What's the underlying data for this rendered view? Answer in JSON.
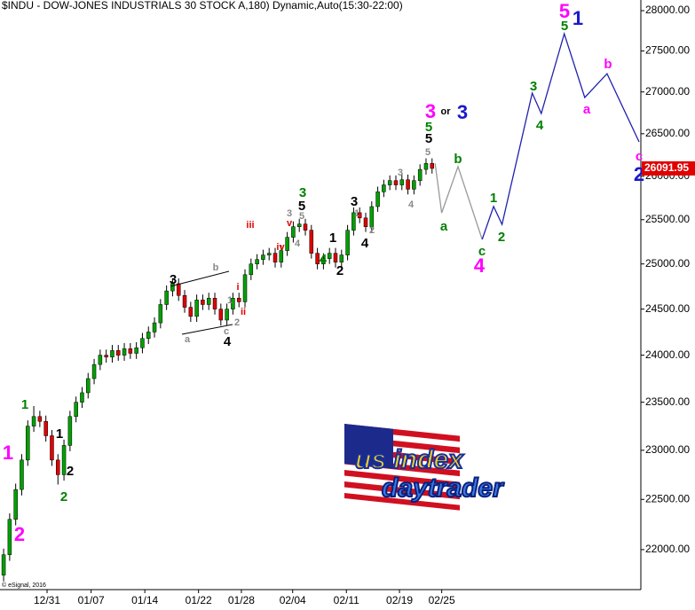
{
  "chart_data": {
    "type": "candlestick",
    "title": "$INDU - DOW-JONES INDUSTRIALS 30 STOCK A,180) Dynamic,Auto(15:30-22:00)",
    "copyright": "© eSignal, 2016",
    "logo": {
      "line1": "us index",
      "line2": "daytrader"
    },
    "log_scale": true,
    "up_color": "#00a000",
    "down_color": "#e00000",
    "last_price_color": "#e00000",
    "ylim": [
      21610,
      28134
    ],
    "yticks": [
      {
        "value": 22000,
        "label": "22000.00"
      },
      {
        "value": 22500,
        "label": "22500.00"
      },
      {
        "value": 23000,
        "label": "23000.00"
      },
      {
        "value": 23500,
        "label": "23500.00"
      },
      {
        "value": 24000,
        "label": "24000.00"
      },
      {
        "value": 24500,
        "label": "24500.00"
      },
      {
        "value": 25000,
        "label": "25000.00"
      },
      {
        "value": 25500,
        "label": "25500.00"
      },
      {
        "value": 26000,
        "label": "26000.00"
      },
      {
        "value": 26500,
        "label": "26500.00"
      },
      {
        "value": 27000,
        "label": "27000.00"
      },
      {
        "value": 27500,
        "label": "27500.00"
      },
      {
        "value": 28000,
        "label": "28000.00"
      }
    ],
    "xlim": [
      -0.6,
      105.6
    ],
    "xticks": [
      {
        "value": 7.2,
        "label": "12/31"
      },
      {
        "value": 14.5,
        "label": "01/07"
      },
      {
        "value": 23.4,
        "label": "01/14"
      },
      {
        "value": 32.3,
        "label": "01/22"
      },
      {
        "value": 39.4,
        "label": "01/28"
      },
      {
        "value": 47.9,
        "label": "02/04"
      },
      {
        "value": 56.8,
        "label": "02/11"
      },
      {
        "value": 65.6,
        "label": "02/19"
      },
      {
        "value": 72.6,
        "label": "02/25"
      }
    ],
    "open": [
      21750,
      21950,
      22300,
      22600,
      22900,
      23250,
      23350,
      23300,
      23150,
      22900,
      22750,
      23050,
      23350,
      23500,
      23600,
      23750,
      23900,
      24000,
      23980,
      24050,
      24000,
      24070,
      24020,
      24080,
      24180,
      24250,
      24350,
      24550,
      24700,
      24780,
      24650,
      24520,
      24420,
      24600,
      24550,
      24620,
      24500,
      24380,
      24500,
      24620,
      24580,
      24880,
      25000,
      25050,
      25100,
      25120,
      25020,
      25150,
      25300,
      25420,
      25450,
      25380,
      25120,
      25000,
      25060,
      25120,
      25020,
      25100,
      25380,
      25580,
      25520,
      25420,
      25650,
      25820,
      25900,
      25950,
      25900,
      25960,
      25850,
      25950,
      26080,
      26150
    ],
    "high": [
      22010,
      22360,
      22660,
      22960,
      23310,
      23460,
      23410,
      23360,
      23210,
      22960,
      23110,
      23410,
      23560,
      23660,
      23810,
      23960,
      24060,
      24060,
      24110,
      24110,
      24130,
      24130,
      24140,
      24240,
      24310,
      24410,
      24610,
      24760,
      24840,
      24840,
      24710,
      24580,
      24660,
      24660,
      24680,
      24680,
      24560,
      24560,
      24680,
      24680,
      24940,
      25060,
      25110,
      25160,
      25180,
      25180,
      25210,
      25360,
      25480,
      25510,
      25510,
      25440,
      25180,
      25120,
      25180,
      25180,
      25160,
      25440,
      25640,
      25640,
      25580,
      25710,
      25880,
      25960,
      26010,
      26010,
      26020,
      26020,
      26010,
      26140,
      26210,
      26210
    ],
    "low": [
      21690,
      21890,
      22240,
      22540,
      22840,
      23190,
      23240,
      23090,
      22840,
      22650,
      22690,
      22990,
      23290,
      23440,
      23540,
      23690,
      23840,
      23920,
      23920,
      23940,
      23940,
      23960,
      23960,
      24020,
      24120,
      24190,
      24290,
      24490,
      24640,
      24590,
      24460,
      24360,
      24360,
      24490,
      24490,
      24440,
      24320,
      24320,
      24440,
      24520,
      24520,
      24820,
      24940,
      24990,
      25040,
      24960,
      24960,
      25090,
      25240,
      25360,
      25320,
      25060,
      24940,
      24940,
      25000,
      24960,
      24960,
      25040,
      25320,
      25460,
      25360,
      25360,
      25590,
      25760,
      25840,
      25840,
      25840,
      25790,
      25790,
      25890,
      26020,
      26032
    ],
    "close": [
      21950,
      22300,
      22600,
      22900,
      23250,
      23350,
      23300,
      23150,
      22900,
      22750,
      23050,
      23350,
      23500,
      23600,
      23750,
      23900,
      24000,
      23980,
      24050,
      24000,
      24070,
      24020,
      24080,
      24180,
      24250,
      24350,
      24550,
      24700,
      24780,
      24650,
      24520,
      24420,
      24600,
      24550,
      24620,
      24500,
      24380,
      24500,
      24620,
      24580,
      24880,
      25000,
      25050,
      25100,
      25120,
      25020,
      25150,
      25300,
      25420,
      25450,
      25380,
      25120,
      25000,
      25060,
      25120,
      25020,
      25100,
      25380,
      25580,
      25520,
      25420,
      25650,
      25820,
      25900,
      25950,
      25900,
      25960,
      25850,
      25950,
      26080,
      26150,
      26091.95
    ],
    "projections": [
      {
        "color": "#999999",
        "x": [
          71.5,
          72.6,
          75.3,
          79.3
        ],
        "values": [
          26150,
          25578,
          26113,
          25276
        ]
      },
      {
        "color": "#2020b0",
        "x": [
          79.3,
          81.2,
          82.6,
          87.6,
          89.1,
          92.9,
          96.3,
          100,
          105.3
        ],
        "values": [
          25276,
          25651,
          25446,
          26986,
          26741,
          27712,
          26933,
          27222,
          26404
        ]
      }
    ],
    "annotations": [
      {
        "text": "1",
        "color": "#ff00ff"
      },
      {
        "text": "2",
        "color": "#ff00ff"
      },
      {
        "text": "1",
        "color": "#008000"
      },
      {
        "text": "1",
        "color": "#000000"
      },
      {
        "text": "2",
        "color": "#000000"
      },
      {
        "text": "2",
        "color": "#008000"
      },
      {
        "text": "3",
        "color": "#000000"
      },
      {
        "text": "b",
        "color": "#888888"
      },
      {
        "text": "a",
        "color": "#888888"
      },
      {
        "text": "c",
        "color": "#888888"
      },
      {
        "text": "4",
        "color": "#000000"
      },
      {
        "text": "i",
        "color": "#e00000"
      },
      {
        "text": "1",
        "color": "#888888"
      },
      {
        "text": "2",
        "color": "#888888"
      },
      {
        "text": "ii",
        "color": "#e00000"
      },
      {
        "text": "iii",
        "color": "#e00000"
      },
      {
        "text": "iv",
        "color": "#e00000"
      },
      {
        "text": "3",
        "color": "#008000"
      },
      {
        "text": "5",
        "color": "#000000"
      },
      {
        "text": "3",
        "color": "#888888"
      },
      {
        "text": "v",
        "color": "#e00000"
      },
      {
        "text": "5",
        "color": "#888888"
      },
      {
        "text": "4",
        "color": "#888888"
      },
      {
        "text": "4",
        "color": "#008000"
      },
      {
        "text": "1",
        "color": "#000000"
      },
      {
        "text": "2",
        "color": "#000000"
      },
      {
        "text": "3",
        "color": "#000000"
      },
      {
        "text": "1",
        "color": "#888888"
      },
      {
        "text": "2",
        "color": "#888888"
      },
      {
        "text": "4",
        "color": "#000000"
      },
      {
        "text": "3",
        "color": "#888888"
      },
      {
        "text": "4",
        "color": "#888888"
      },
      {
        "text": "3",
        "color": "#ff00ff"
      },
      {
        "text": "or",
        "color": "#000000"
      },
      {
        "text": "3",
        "color": "#1a1acc"
      },
      {
        "text": "5",
        "color": "#008000"
      },
      {
        "text": "5",
        "color": "#000000"
      },
      {
        "text": "5",
        "color": "#888888"
      },
      {
        "text": "b",
        "color": "#008000"
      },
      {
        "text": "a",
        "color": "#008000"
      },
      {
        "text": "c",
        "color": "#008000"
      },
      {
        "text": "4",
        "color": "#ff00ff"
      },
      {
        "text": "1",
        "color": "#008000"
      },
      {
        "text": "2",
        "color": "#008000"
      },
      {
        "text": "3",
        "color": "#008000"
      },
      {
        "text": "4",
        "color": "#008000"
      },
      {
        "text": "5",
        "color": "#ff00ff"
      },
      {
        "text": "5",
        "color": "#008000"
      },
      {
        "text": "1",
        "color": "#1a1acc"
      },
      {
        "text": "a",
        "color": "#ff00ff"
      },
      {
        "text": "b",
        "color": "#ff00ff"
      },
      {
        "text": "c",
        "color": "#ff00ff"
      },
      {
        "text": "2",
        "color": "#1a1acc"
      }
    ]
  }
}
